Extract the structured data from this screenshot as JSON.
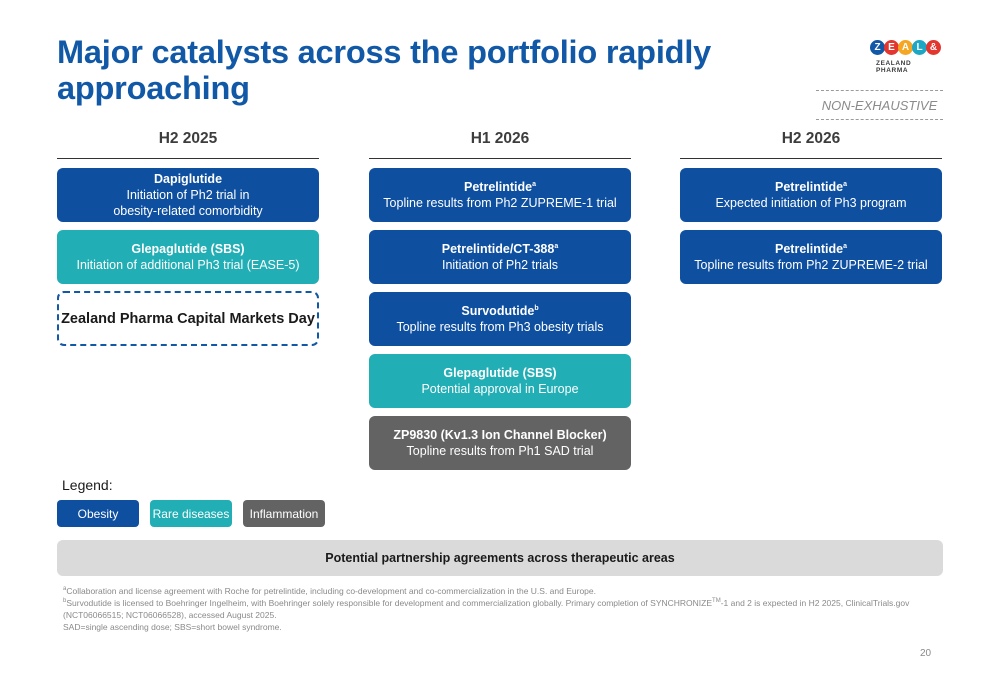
{
  "title": "Major catalysts across the portfolio rapidly approaching",
  "logo": {
    "letters": [
      "Z",
      "E",
      "A",
      "L",
      "&"
    ],
    "colors": [
      "#1158a6",
      "#e2362f",
      "#f5a623",
      "#1ea7c5",
      "#e2362f"
    ],
    "subtitle": "ZEALAND PHARMA"
  },
  "tag": "NON-EXHAUSTIVE",
  "columns": [
    {
      "heading": "H2 2025"
    },
    {
      "heading": "H1 2026"
    },
    {
      "heading": "H2 2026"
    }
  ],
  "cards": {
    "c0_0": {
      "title": "Dapiglutide",
      "sup": "",
      "line1": "Initiation of Ph2 trial in",
      "line2": "obesity-related comorbidity",
      "category": "obesity"
    },
    "c0_1": {
      "title": "Glepaglutide (SBS)",
      "sup": "",
      "line1": "Initiation of additional Ph3 trial (EASE-5)",
      "category": "rare-diseases"
    },
    "c0_2": {
      "title": "Zealand Pharma Capital Markets Day"
    },
    "c1_0": {
      "title": "Petrelintide",
      "sup": "a",
      "line1": "Topline results from Ph2 ZUPREME-1 trial",
      "category": "obesity"
    },
    "c1_1": {
      "title": "Petrelintide/CT-388",
      "sup": "a",
      "line1": "Initiation of Ph2 trials",
      "category": "obesity"
    },
    "c1_2": {
      "title": "Survodutide",
      "sup": "b",
      "line1": "Topline results from Ph3 obesity trials",
      "category": "obesity"
    },
    "c1_3": {
      "title": "Glepaglutide (SBS)",
      "sup": "",
      "line1": "Potential approval in Europe",
      "category": "rare-diseases"
    },
    "c1_4": {
      "title": "ZP9830 (Kv1.3 Ion Channel Blocker)",
      "sup": "",
      "line1": "Topline results from Ph1 SAD trial",
      "category": "inflammation"
    },
    "c2_0": {
      "title": "Petrelintide",
      "sup": "a",
      "line1": "Expected initiation of Ph3 program",
      "category": "obesity"
    },
    "c2_1": {
      "title": "Petrelintide",
      "sup": "a",
      "line1": "Topline results from Ph2 ZUPREME-2 trial",
      "category": "obesity"
    }
  },
  "legend": {
    "label": "Legend:",
    "items": [
      {
        "label": "Obesity",
        "color": "#0e4fa0"
      },
      {
        "label": "Rare diseases",
        "color": "#21aeb5"
      },
      {
        "label": "Inflammation",
        "color": "#636363"
      }
    ]
  },
  "partnership": "Potential partnership agreements across therapeutic areas",
  "footnotes": {
    "a_mark": "a",
    "a": "Collaboration and license agreement with Roche for petrelintide, including co-development and co-commercialization in the U.S. and Europe.",
    "b_mark": "b",
    "b_part1": "Survodutide is licensed to Boehringer Ingelheim, with Boehringer solely responsible for development and commercialization globally. Primary completion of SYNCHRONIZE",
    "b_tm": "TM",
    "b_part2": "-1 and 2 is expected in H2 2025, ClinicalTrials.gov (NCT06066515; NCT06066528), accessed August 2025.",
    "abbrev": "SAD=single ascending dose; SBS=short bowel syndrome."
  },
  "page_number": "20"
}
